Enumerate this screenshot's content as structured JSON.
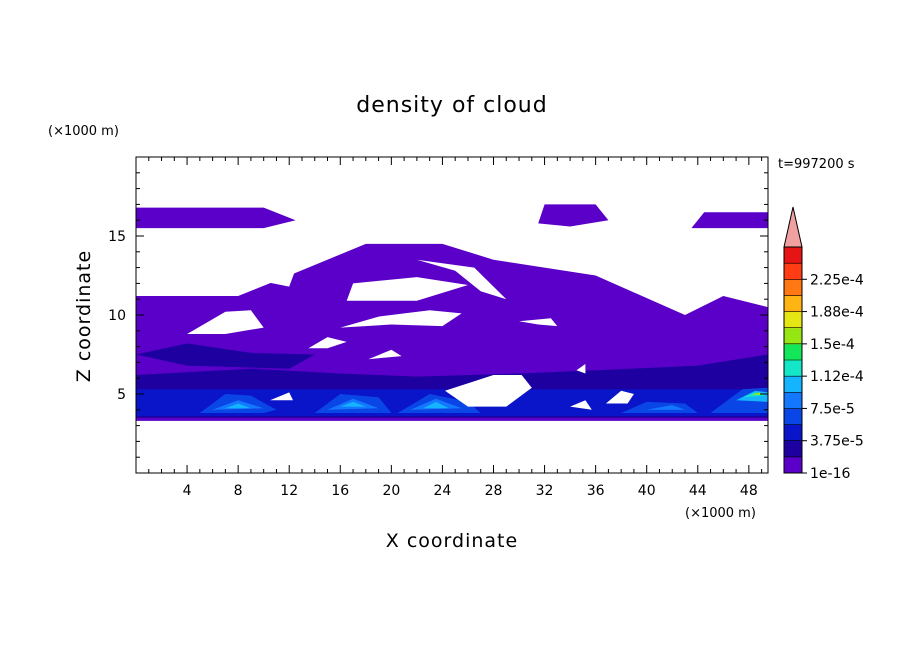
{
  "chart_data": {
    "type": "heatmap",
    "title": "density of cloud",
    "xlabel": "X coordinate",
    "ylabel": "Z coordinate",
    "x_unit": "(×1000 m)",
    "y_unit": "(×1000 m)",
    "time_label": "t=997200 s",
    "xlim": [
      0,
      49.5
    ],
    "ylim": [
      0,
      20
    ],
    "x_ticks": [
      "4",
      "8",
      "12",
      "16",
      "20",
      "24",
      "28",
      "32",
      "36",
      "40",
      "44",
      "48"
    ],
    "y_ticks": [
      "5",
      "10",
      "15"
    ],
    "colorbar": {
      "labels": [
        "1e-16",
        "3.75e-5",
        "7.5e-5",
        "1.12e-4",
        "1.5e-4",
        "1.88e-4",
        "2.25e-4"
      ],
      "levels": [
        1e-16,
        1.875e-05,
        3.75e-05,
        5.625e-05,
        7.5e-05,
        9.375e-05,
        0.0001125,
        0.00013125,
        0.00015,
        0.00016875,
        0.0001875,
        0.00020625,
        0.000225,
        0.00024375
      ],
      "colors": [
        "#5a00c8",
        "#1e00a0",
        "#0a14c8",
        "#0a46e6",
        "#1478ff",
        "#14b4ff",
        "#14e6c8",
        "#14e65a",
        "#96e614",
        "#e6e614",
        "#ffb414",
        "#ff7814",
        "#ff3c14",
        "#e61414"
      ],
      "overflow_color": "#f0a0a0"
    },
    "regions": [
      {
        "level": 0,
        "xz": [
          [
            0,
            15.5
          ],
          [
            10,
            15.5
          ],
          [
            12.5,
            16
          ],
          [
            10,
            16.8
          ],
          [
            0,
            16.8
          ]
        ]
      },
      {
        "level": 0,
        "xz": [
          [
            31.5,
            15.8
          ],
          [
            34,
            15.6
          ],
          [
            37,
            16
          ],
          [
            36,
            17
          ],
          [
            32,
            17
          ]
        ]
      },
      {
        "level": 0,
        "xz": [
          [
            43.5,
            15.5
          ],
          [
            49.5,
            15.5
          ],
          [
            49.5,
            16.5
          ],
          [
            44.5,
            16.5
          ]
        ]
      },
      {
        "level": 0,
        "xz": [
          [
            0,
            3.3
          ],
          [
            49.5,
            3.3
          ],
          [
            49.5,
            10.5
          ],
          [
            46,
            11.2
          ],
          [
            43,
            10
          ],
          [
            36,
            12.5
          ],
          [
            28,
            13.5
          ],
          [
            24,
            14.5
          ],
          [
            18,
            14.5
          ],
          [
            12,
            12.5
          ],
          [
            8,
            11.2
          ],
          [
            0,
            11.2
          ]
        ]
      },
      {
        "level": 1,
        "xz": [
          [
            0,
            6.2
          ],
          [
            9,
            6.6
          ],
          [
            16,
            6.3
          ],
          [
            22,
            6.1
          ],
          [
            30,
            6.3
          ],
          [
            36,
            6.5
          ],
          [
            44,
            6.8
          ],
          [
            49.5,
            7.5
          ],
          [
            49.5,
            3.5
          ],
          [
            0,
            3.5
          ]
        ]
      },
      {
        "level": 1,
        "xz": [
          [
            0,
            7.5
          ],
          [
            4,
            8.2
          ],
          [
            9,
            7.6
          ],
          [
            14,
            7.5
          ],
          [
            12,
            6.6
          ],
          [
            4,
            6.8
          ]
        ]
      },
      {
        "level": 2,
        "xz": [
          [
            0,
            5.3
          ],
          [
            49.5,
            5.3
          ],
          [
            49.5,
            3.6
          ],
          [
            0,
            3.6
          ]
        ]
      },
      {
        "level": 3,
        "xz": [
          [
            5,
            3.8
          ],
          [
            7,
            5
          ],
          [
            9,
            4.9
          ],
          [
            11,
            4
          ],
          [
            10,
            3.8
          ]
        ]
      },
      {
        "level": 3,
        "xz": [
          [
            14,
            3.8
          ],
          [
            16,
            5
          ],
          [
            19,
            4.8
          ],
          [
            20,
            3.8
          ]
        ]
      },
      {
        "level": 3,
        "xz": [
          [
            20.5,
            3.8
          ],
          [
            23,
            5
          ],
          [
            26,
            4.5
          ],
          [
            27,
            3.8
          ]
        ]
      },
      {
        "level": 3,
        "xz": [
          [
            38,
            3.8
          ],
          [
            40,
            4.5
          ],
          [
            43,
            4.4
          ],
          [
            44,
            3.8
          ]
        ]
      },
      {
        "level": 3,
        "xz": [
          [
            45,
            3.8
          ],
          [
            47.5,
            5.3
          ],
          [
            49.5,
            5.4
          ],
          [
            49.5,
            3.8
          ]
        ]
      },
      {
        "level": 4,
        "xz": [
          [
            6,
            4
          ],
          [
            8,
            4.6
          ],
          [
            10,
            4.1
          ]
        ]
      },
      {
        "level": 4,
        "xz": [
          [
            15,
            4
          ],
          [
            17,
            4.7
          ],
          [
            19,
            4.1
          ]
        ]
      },
      {
        "level": 4,
        "xz": [
          [
            21.5,
            4
          ],
          [
            23.5,
            4.7
          ],
          [
            25.5,
            4.1
          ]
        ]
      },
      {
        "level": 4,
        "xz": [
          [
            40,
            4
          ],
          [
            42,
            4.3
          ],
          [
            43,
            4
          ]
        ]
      },
      {
        "level": 5,
        "xz": [
          [
            7,
            4.1
          ],
          [
            8,
            4.4
          ],
          [
            9,
            4.1
          ]
        ]
      },
      {
        "level": 5,
        "xz": [
          [
            16,
            4.2
          ],
          [
            17,
            4.5
          ],
          [
            18,
            4.2
          ]
        ]
      },
      {
        "level": 5,
        "xz": [
          [
            22.5,
            4.1
          ],
          [
            23.5,
            4.5
          ],
          [
            24.5,
            4.1
          ]
        ]
      },
      {
        "level": 5,
        "xz": [
          [
            47,
            4.6
          ],
          [
            48.5,
            5.2
          ],
          [
            49.5,
            5.1
          ],
          [
            49.5,
            4.5
          ]
        ]
      },
      {
        "level": 6,
        "xz": [
          [
            47.5,
            4.8
          ],
          [
            48.5,
            5.1
          ],
          [
            49.3,
            4.9
          ]
        ]
      },
      {
        "level": 8,
        "xz": [
          [
            48.2,
            4.95
          ],
          [
            48.8,
            5.1
          ],
          [
            49.2,
            4.95
          ]
        ]
      }
    ],
    "gaps": [
      {
        "xz": [
          [
            4,
            8.8
          ],
          [
            7,
            10.2
          ],
          [
            9,
            10.3
          ],
          [
            10,
            9.2
          ],
          [
            7,
            8.8
          ]
        ]
      },
      {
        "xz": [
          [
            9.5,
            12.2
          ],
          [
            12.5,
            12.9
          ],
          [
            12,
            11.8
          ]
        ]
      },
      {
        "xz": [
          [
            16,
            9.2
          ],
          [
            19,
            9.9
          ],
          [
            23,
            10.3
          ],
          [
            25.5,
            10.1
          ],
          [
            24,
            9.3
          ],
          [
            20,
            9.4
          ]
        ]
      },
      {
        "xz": [
          [
            13.5,
            7.9
          ],
          [
            15,
            8.6
          ],
          [
            16.5,
            8.3
          ],
          [
            15,
            7.9
          ]
        ]
      },
      {
        "xz": [
          [
            18.2,
            7.2
          ],
          [
            20,
            7.8
          ],
          [
            20.8,
            7.4
          ]
        ]
      },
      {
        "xz": [
          [
            16.5,
            10.9
          ],
          [
            22,
            10.9
          ],
          [
            26,
            11.9
          ],
          [
            22,
            12.4
          ],
          [
            17,
            12
          ]
        ]
      },
      {
        "xz": [
          [
            22,
            13.5
          ],
          [
            25,
            12.8
          ],
          [
            27,
            11.5
          ],
          [
            29,
            11
          ],
          [
            26.5,
            13
          ]
        ]
      },
      {
        "xz": [
          [
            30,
            9.6
          ],
          [
            32.5,
            9.8
          ],
          [
            33,
            9.3
          ],
          [
            31.5,
            9.4
          ]
        ]
      },
      {
        "xz": [
          [
            34.5,
            6.5
          ],
          [
            35.2,
            6.9
          ],
          [
            35.2,
            6.3
          ]
        ]
      },
      {
        "xz": [
          [
            34,
            4.2
          ],
          [
            35.2,
            4.6
          ],
          [
            35.7,
            4
          ]
        ]
      },
      {
        "xz": [
          [
            36.8,
            4.4
          ],
          [
            38,
            5.2
          ],
          [
            39,
            5
          ],
          [
            38.5,
            4.4
          ]
        ]
      },
      {
        "xz": [
          [
            24.2,
            5.2
          ],
          [
            28,
            6.2
          ],
          [
            30.2,
            6.2
          ],
          [
            31,
            5.4
          ],
          [
            29,
            4.2
          ],
          [
            26,
            4.2
          ]
        ]
      },
      {
        "xz": [
          [
            10.5,
            4.6
          ],
          [
            12,
            5.1
          ],
          [
            12.3,
            4.6
          ]
        ]
      },
      {
        "xz": [
          [
            42.5,
            12.2
          ],
          [
            45,
            11.9
          ],
          [
            44,
            13
          ]
        ]
      }
    ]
  }
}
